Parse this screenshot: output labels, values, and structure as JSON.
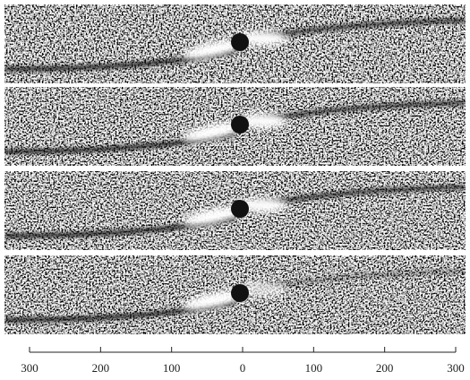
{
  "figure": {
    "axis": {
      "ticks": [
        {
          "value": -300,
          "label": "300"
        },
        {
          "value": -200,
          "label": "200"
        },
        {
          "value": -100,
          "label": "100"
        },
        0,
        100,
        200,
        300
      ]
    }
  }
}
